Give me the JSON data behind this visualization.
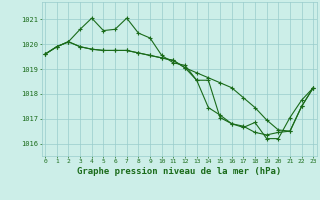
{
  "background_color": "#cceee8",
  "grid_color": "#99cccc",
  "line_color": "#1a6b1a",
  "marker_color": "#1a6b1a",
  "xlabel": "Graphe pression niveau de la mer (hPa)",
  "xlabel_color": "#1a6b1a",
  "tick_color": "#1a6b1a",
  "ylim": [
    1015.5,
    1021.7
  ],
  "yticks": [
    1016,
    1017,
    1018,
    1019,
    1020,
    1021
  ],
  "xticks": [
    0,
    1,
    2,
    3,
    4,
    5,
    6,
    7,
    8,
    9,
    10,
    11,
    12,
    13,
    14,
    15,
    16,
    17,
    18,
    19,
    20,
    21,
    22,
    23
  ],
  "series": [
    [
      1019.6,
      1019.9,
      1020.1,
      1020.6,
      1021.05,
      1020.55,
      1020.6,
      1021.05,
      1020.45,
      1020.25,
      1019.55,
      1019.25,
      1019.15,
      1018.55,
      1018.55,
      1017.05,
      1016.8,
      1016.65,
      1016.85,
      1016.2,
      1016.2,
      1017.05,
      1017.75,
      1018.25
    ],
    [
      1019.6,
      1019.9,
      1020.1,
      1019.9,
      1019.8,
      1019.75,
      1019.75,
      1019.75,
      1019.65,
      1019.55,
      1019.45,
      1019.35,
      1019.05,
      1018.85,
      1018.65,
      1018.45,
      1018.25,
      1017.85,
      1017.45,
      1016.95,
      1016.55,
      1016.5,
      1017.5,
      1018.25
    ],
    [
      1019.6,
      1019.9,
      1020.1,
      1019.9,
      1019.8,
      1019.75,
      1019.75,
      1019.75,
      1019.65,
      1019.55,
      1019.45,
      1019.35,
      1019.05,
      1018.55,
      1017.45,
      1017.15,
      1016.8,
      1016.7,
      1016.45,
      1016.35,
      1016.45,
      1016.5,
      1017.5,
      1018.25
    ]
  ]
}
